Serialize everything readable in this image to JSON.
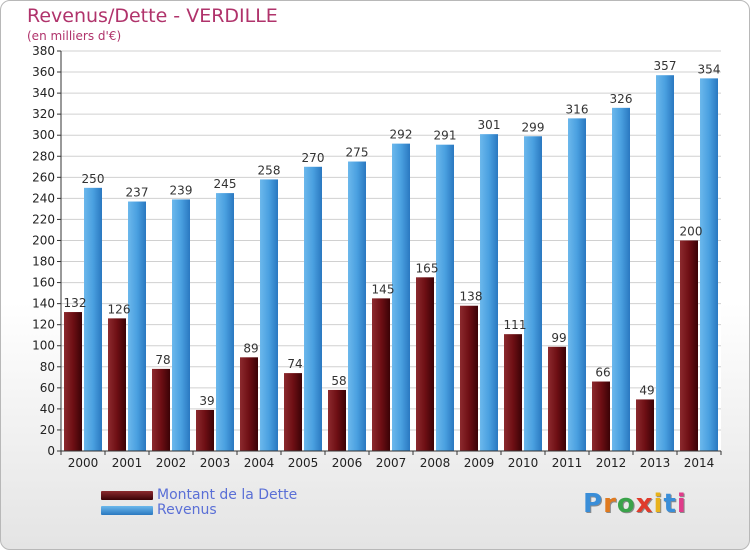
{
  "header": {
    "title": "Revenus/Dette - VERDILLE",
    "subtitle": "(en milliers d'€)"
  },
  "colors": {
    "dette": "#6e0f14",
    "revenus": "#4aa0e0",
    "title": "#b0336b",
    "legend_text": "#5a6fd6"
  },
  "chart_data": {
    "type": "bar",
    "title": "Revenus/Dette - VERDILLE",
    "subtitle": "(en milliers d'€)",
    "categories": [
      "2000",
      "2001",
      "2002",
      "2003",
      "2004",
      "2005",
      "2006",
      "2007",
      "2008",
      "2009",
      "2010",
      "2011",
      "2012",
      "2013",
      "2014"
    ],
    "series": [
      {
        "name": "Montant de la Dette",
        "values": [
          132,
          126,
          78,
          39,
          89,
          74,
          58,
          145,
          165,
          138,
          111,
          99,
          66,
          49,
          200
        ]
      },
      {
        "name": "Revenus",
        "values": [
          250,
          237,
          239,
          245,
          258,
          270,
          275,
          292,
          291,
          301,
          299,
          316,
          326,
          357,
          354
        ]
      }
    ],
    "ylim": [
      0,
      380
    ],
    "ytick_step": 20,
    "grid": true,
    "legend_position": "bottom-left"
  },
  "legend": {
    "items": [
      {
        "label": "Montant de la Dette"
      },
      {
        "label": "Revenus"
      }
    ]
  },
  "logo": {
    "letters": [
      "P",
      "r",
      "o",
      "x",
      "i",
      "t",
      "i"
    ],
    "colors": [
      "#3a8ed8",
      "#e07a1f",
      "#3aa34a",
      "#e03c2c",
      "#e8b21c",
      "#3a8ed8",
      "#e03c8a"
    ]
  }
}
